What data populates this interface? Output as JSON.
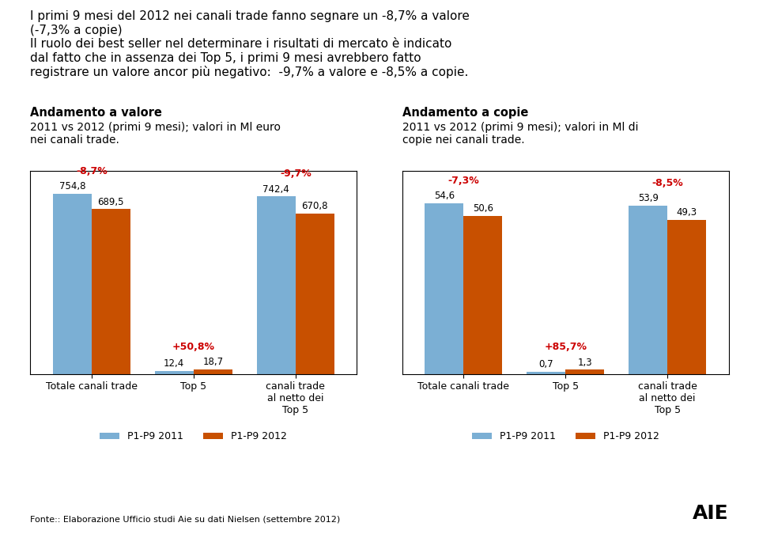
{
  "title": "I primi 9 mesi del 2012 nei canali trade fanno segnare un -8,7% a valore\n(-7,3% a copie)\nIl ruolo dei best seller nel determinare i risultati di mercato è indicato\ndal fatto che in assenza dei Top 5, i primi 9 mesi avrebbero fatto\nregistrare un valore ancor più negativo:  -9,7% a valore e -8,5% a copie.",
  "annotations": [
    "Fonte:: Elaborazione Ufficio studi Aie su dati Nielsen (settembre 2012)",
    "AIE"
  ],
  "chart_data": [
    {
      "type": "bar",
      "title": "Andamento a valore",
      "subtitle": "2011 vs 2012 (primi 9 mesi); valori in Ml euro\nnei canali trade.",
      "categories": [
        "Totale canali trade",
        "Top 5",
        "canali trade\nal netto dei\nTop 5"
      ],
      "series": [
        {
          "name": "P1-P9 2011",
          "color": "#7BAFD4",
          "values": [
            754.8,
            12.4,
            742.4
          ],
          "value_labels": [
            "754,8",
            "12,4",
            "742,4"
          ]
        },
        {
          "name": "P1-P9 2012",
          "color": "#C85000",
          "values": [
            689.5,
            18.7,
            670.8
          ],
          "value_labels": [
            "689,5",
            "18,7",
            "670,8"
          ]
        }
      ],
      "annotations": [
        "-8,7%",
        "+50,8%",
        "-9,7%"
      ],
      "ylim": [
        0,
        850
      ],
      "tick_labels": "x",
      "data_labels": true,
      "legend": "upper center"
    },
    {
      "type": "bar",
      "title": "Andamento a copie",
      "subtitle": "2011 vs 2012 (primi 9 mesi); valori in Ml di\ncopie nei canali trade.",
      "categories": [
        "Totale canali trade",
        "Top 5",
        "canali trade\nal netto dei\nTop 5"
      ],
      "series": [
        {
          "name": "P1-P9 2011",
          "color": "#7BAFD4",
          "values": [
            54.6,
            0.7,
            53.9
          ],
          "value_labels": [
            "54,6",
            "0,7",
            "53,9"
          ]
        },
        {
          "name": "P1-P9 2012",
          "color": "#C85000",
          "values": [
            50.6,
            1.3,
            49.3
          ],
          "value_labels": [
            "50,6",
            "1,3",
            "49,3"
          ]
        }
      ],
      "annotations": [
        "-7,3%",
        "+85,7%",
        "-8,5%"
      ],
      "ylim": [
        0,
        65
      ],
      "tick_labels": "x",
      "data_labels": true,
      "legend": "upper center"
    }
  ]
}
